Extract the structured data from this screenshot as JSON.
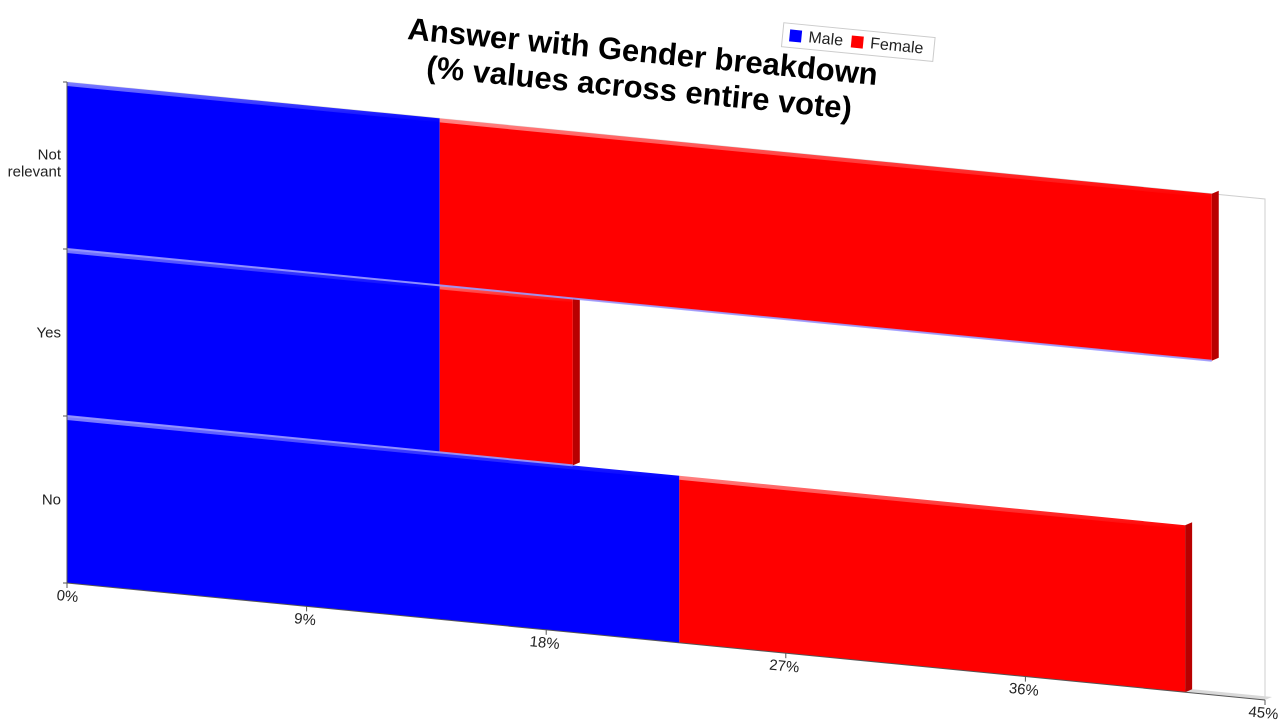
{
  "chart_data": {
    "type": "bar",
    "orientation": "horizontal",
    "stacked": true,
    "title": "Answer with Gender breakdown\n(% values across entire vote)",
    "categories": [
      "No",
      "Yes",
      "Not relevant"
    ],
    "series": [
      {
        "name": "Male",
        "color": "#0000ff",
        "values": [
          23,
          14,
          14
        ]
      },
      {
        "name": "Female",
        "color": "#ff0000",
        "values": [
          19,
          5,
          29
        ]
      }
    ],
    "x_ticks": [
      "0%",
      "9%",
      "18%",
      "27%",
      "36%",
      "45%"
    ],
    "xlim": [
      0,
      45
    ],
    "legend_position": "top",
    "grid": false
  }
}
